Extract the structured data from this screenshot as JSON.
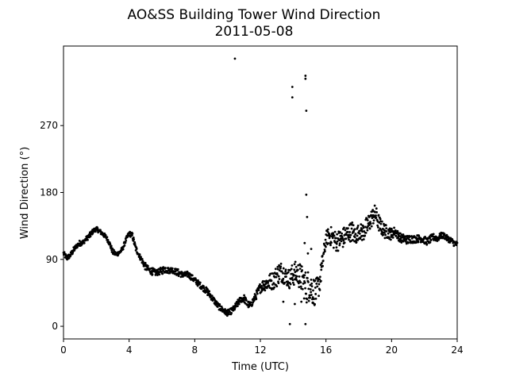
{
  "chart_data": {
    "type": "scatter",
    "title": "AO&SS Building Tower Wind Direction",
    "subtitle": "2011-05-08",
    "xlabel": "Time (UTC)",
    "ylabel": "Wind Direction (°)",
    "xlim": [
      0,
      24
    ],
    "ylim": [
      -17,
      377
    ],
    "xticks": [
      0,
      4,
      8,
      12,
      16,
      20,
      24
    ],
    "xtick_labels": [
      "0",
      "4",
      "8",
      "12",
      "16",
      "20",
      "24"
    ],
    "yticks": [
      0,
      90,
      180,
      270
    ],
    "ytick_labels": [
      "0",
      "90",
      "180",
      "270"
    ],
    "grid": false,
    "marker_color": "#000000",
    "series": [
      {
        "x": [
          0.0,
          0.2,
          0.4,
          0.6,
          0.8,
          1.0,
          1.2,
          1.4,
          1.6,
          1.8,
          2.0,
          2.2,
          2.4,
          2.6,
          2.8,
          3.0,
          3.2,
          3.4,
          3.6,
          3.8,
          4.0,
          4.2,
          4.4,
          4.6,
          4.8,
          5.0,
          5.2,
          5.4,
          5.6,
          5.8,
          6.0,
          6.2,
          6.4,
          6.6,
          6.8,
          7.0,
          7.2,
          7.4,
          7.6,
          7.8,
          8.0,
          8.2,
          8.4,
          8.6,
          8.8,
          9.0,
          9.2,
          9.4,
          9.6,
          9.8,
          10.0,
          10.2,
          10.4,
          10.6,
          10.8,
          11.0,
          11.2,
          11.4,
          11.6,
          11.8,
          12.0,
          12.2,
          12.4,
          12.6,
          12.8,
          13.0,
          13.2,
          13.4,
          13.6,
          13.8,
          14.0,
          14.2,
          14.4,
          14.6,
          14.8,
          15.0,
          15.2,
          15.4,
          15.6,
          15.8,
          16.0,
          16.2,
          16.4,
          16.6,
          16.8,
          17.0,
          17.2,
          17.4,
          17.6,
          17.8,
          18.0,
          18.2,
          18.4,
          18.6,
          18.8,
          19.0,
          19.2,
          19.4,
          19.6,
          19.8,
          20.0,
          20.2,
          20.4,
          20.6,
          20.8,
          21.0,
          21.2,
          21.4,
          21.6,
          21.8,
          22.0,
          22.2,
          22.4,
          22.6,
          22.8,
          23.0,
          23.2,
          23.4,
          23.6,
          23.8,
          24.0
        ],
        "y": [
          98,
          92,
          95,
          102,
          108,
          112,
          113,
          118,
          122,
          128,
          131,
          128,
          124,
          120,
          112,
          100,
          97,
          99,
          104,
          116,
          125,
          122,
          105,
          96,
          88,
          80,
          76,
          74,
          72,
          73,
          75,
          77,
          75,
          76,
          74,
          72,
          70,
          69,
          70,
          66,
          62,
          58,
          54,
          50,
          46,
          40,
          34,
          28,
          24,
          20,
          18,
          20,
          24,
          30,
          36,
          38,
          30,
          28,
          36,
          44,
          52,
          56,
          58,
          60,
          62,
          68,
          74,
          72,
          66,
          64,
          70,
          72,
          68,
          60,
          52,
          56,
          48,
          46,
          58,
          86,
          118,
          122,
          120,
          114,
          116,
          118,
          122,
          126,
          128,
          120,
          128,
          126,
          130,
          138,
          146,
          152,
          140,
          132,
          128,
          126,
          124,
          128,
          122,
          118,
          118,
          116,
          118,
          117,
          118,
          118,
          116,
          114,
          118,
          120,
          118,
          122,
          122,
          118,
          116,
          112,
          110
        ],
        "jitter": [
          3,
          4,
          3,
          4,
          3,
          4,
          3,
          3,
          4,
          3,
          3,
          3,
          3,
          3,
          3,
          4,
          3,
          3,
          3,
          3,
          3,
          4,
          4,
          3,
          4,
          5,
          4,
          5,
          4,
          4,
          5,
          5,
          4,
          4,
          4,
          5,
          4,
          4,
          4,
          4,
          4,
          4,
          4,
          4,
          5,
          4,
          4,
          4,
          4,
          4,
          4,
          4,
          4,
          5,
          4,
          5,
          5,
          4,
          5,
          6,
          7,
          8,
          10,
          12,
          12,
          15,
          14,
          14,
          12,
          14,
          16,
          16,
          18,
          20,
          22,
          22,
          20,
          18,
          16,
          14,
          10,
          12,
          14,
          14,
          14,
          14,
          14,
          12,
          14,
          12,
          10,
          12,
          14,
          14,
          12,
          12,
          12,
          10,
          10,
          8,
          8,
          6,
          6,
          6,
          6,
          6,
          6,
          5,
          5,
          5,
          5,
          5,
          5,
          5,
          4,
          4,
          4,
          4,
          4,
          4,
          4
        ]
      }
    ],
    "outliers": {
      "x": [
        10.45,
        13.95,
        13.95,
        14.75,
        14.75,
        14.8,
        14.8,
        14.85,
        13.4,
        14.1,
        14.5,
        14.7,
        14.9,
        15.1,
        15.2,
        13.8,
        14.75
      ],
      "y": [
        360,
        322,
        308,
        337,
        333,
        290,
        177,
        147,
        33,
        30,
        33,
        112,
        98,
        104,
        32,
        3,
        3
      ]
    }
  }
}
